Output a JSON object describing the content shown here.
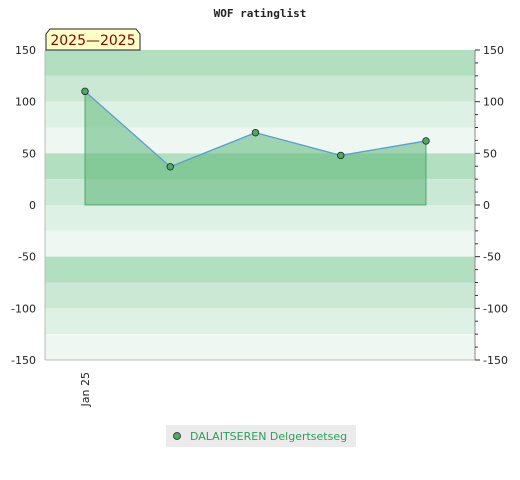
{
  "chart_data": {
    "type": "area",
    "title": "WOF ratinglist",
    "badge": "2025—2025",
    "xlabel": "",
    "ylabel": "",
    "ylim": [
      -150,
      150
    ],
    "yticks": [
      150,
      100,
      50,
      0,
      -50,
      -100,
      -150
    ],
    "ytick_labels": [
      "150",
      "100",
      "50",
      "0",
      "-50",
      "-100",
      "-150"
    ],
    "x_tick_labels": [
      "Jan 25"
    ],
    "series": [
      {
        "name": "DALAITSEREN Delgertsetseg",
        "values": [
          110,
          37,
          70,
          48,
          62
        ]
      }
    ],
    "legend": "bottom-center",
    "grid": true
  },
  "colors": {
    "band_dark": "#b3dfc1",
    "band_mid": "#cbe8d5",
    "band_light": "#ddf1e4",
    "band_lightest": "#eef7f1",
    "area_fill": "#5cb878",
    "line": "#5aa0d0",
    "marker": "#4caa64",
    "badge_bg": "#ffffc8"
  }
}
